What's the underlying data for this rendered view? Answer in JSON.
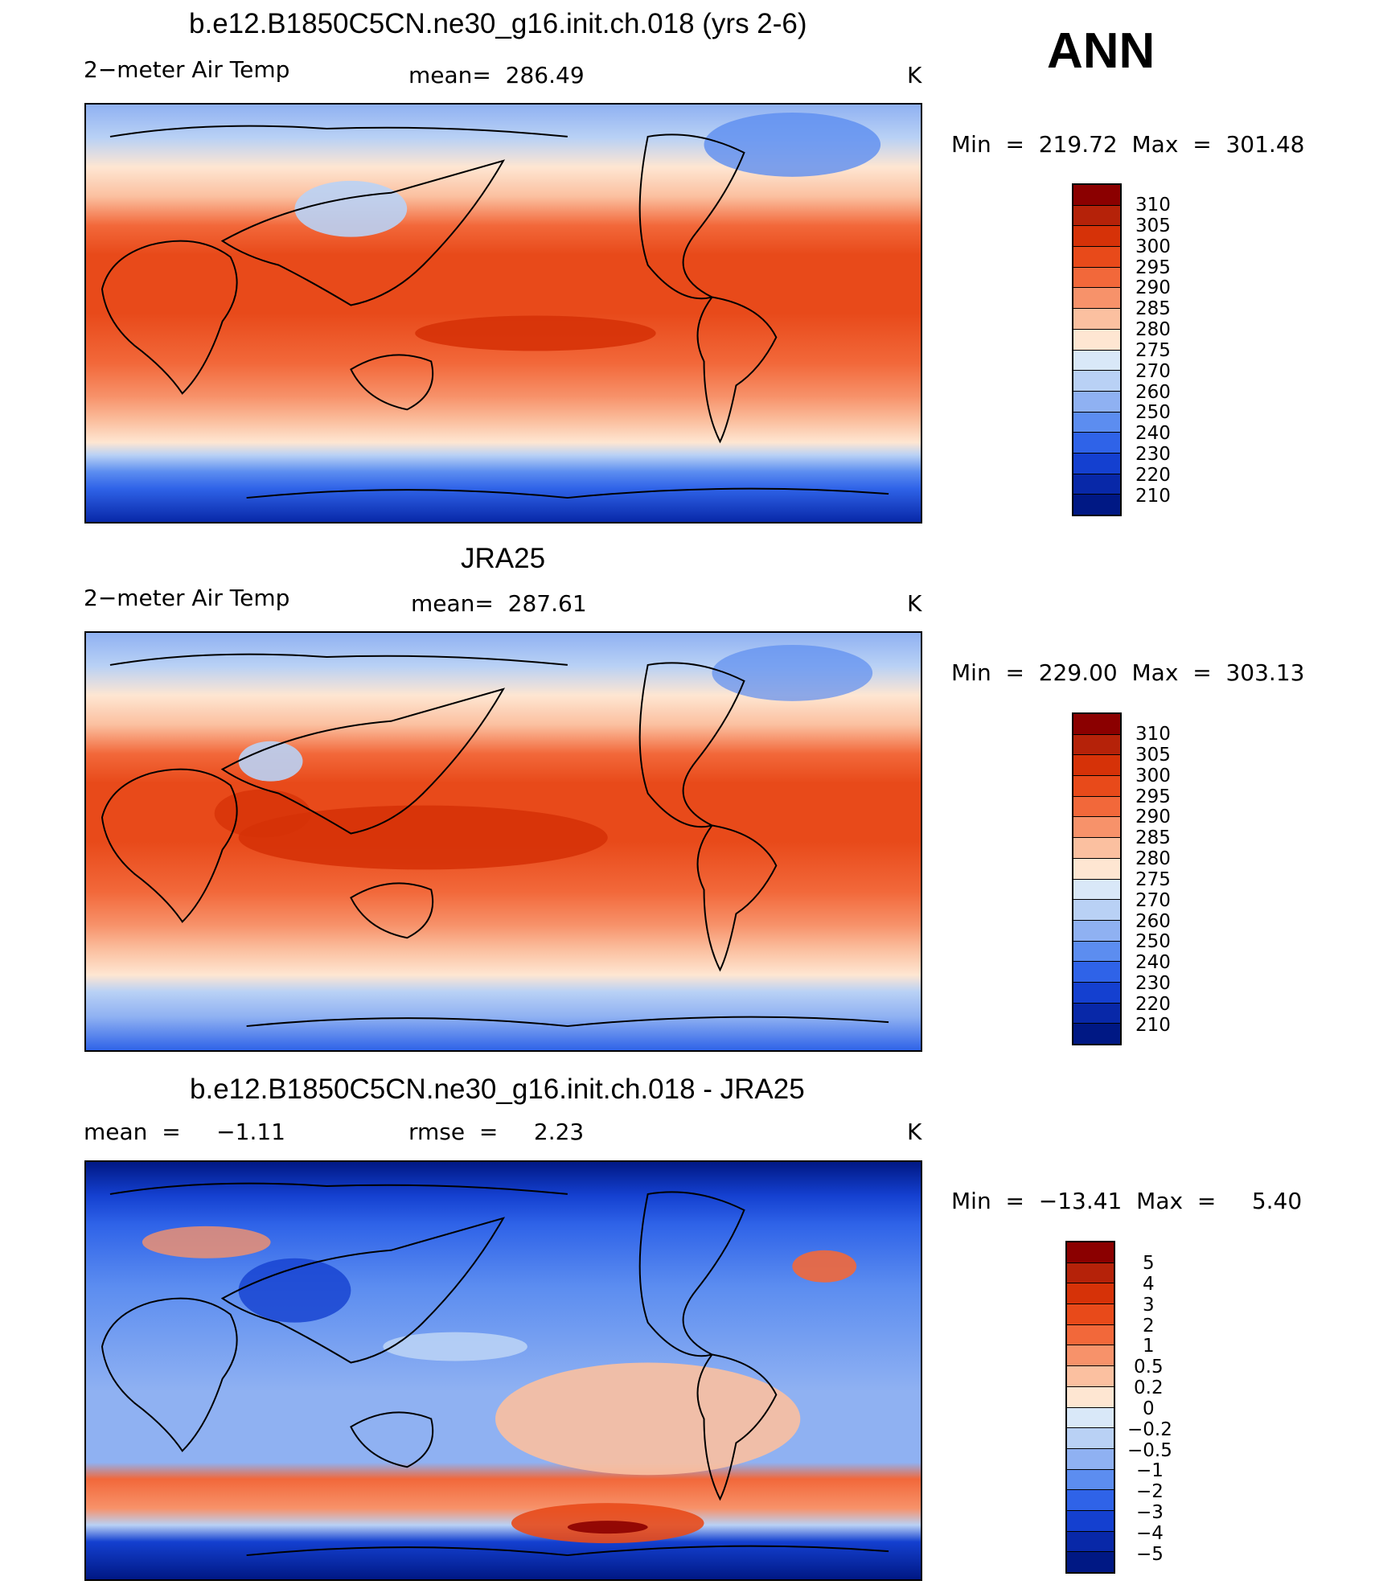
{
  "season": "ANN",
  "units": "K",
  "panels": [
    {
      "title": "b.e12.B1850C5CN.ne30_g16.init.ch.018 (yrs 2-6)",
      "variable": "2−meter Air Temp",
      "stat_text": "mean=  286.49",
      "minmax_text": "Min  =  219.72  Max  =  301.48",
      "colorbar_labels": [
        "310",
        "305",
        "300",
        "295",
        "290",
        "285",
        "280",
        "275",
        "270",
        "260",
        "250",
        "240",
        "230",
        "220",
        "210"
      ]
    },
    {
      "title": "JRA25",
      "variable": "2−meter Air Temp",
      "stat_text": "mean=  287.61",
      "minmax_text": "Min  =  229.00  Max  =  303.13",
      "colorbar_labels": [
        "310",
        "305",
        "300",
        "295",
        "290",
        "285",
        "280",
        "275",
        "270",
        "260",
        "250",
        "240",
        "230",
        "220",
        "210"
      ]
    },
    {
      "title": "b.e12.B1850C5CN.ne30_g16.init.ch.018 - JRA25",
      "mean_text": "mean  =     −1.11",
      "rmse_text": "rmse  =     2.23",
      "minmax_text": "Min  =  −13.41  Max  =     5.40",
      "colorbar_labels": [
        "5",
        "4",
        "3",
        "2",
        "1",
        "0.5",
        "0.2",
        "0",
        "−0.2",
        "−0.5",
        "−1",
        "−2",
        "−3",
        "−4",
        "−5"
      ]
    }
  ],
  "colors": {
    "palette": [
      "#8b0000",
      "#b52209",
      "#d63208",
      "#e84a1a",
      "#f2683a",
      "#f7926a",
      "#fbc0a0",
      "#fee6d2",
      "#d9e8f8",
      "#b9d1f5",
      "#8fb1f2",
      "#5c8df0",
      "#2f63e8",
      "#1440d0",
      "#0828a8",
      "#001884"
    ]
  }
}
